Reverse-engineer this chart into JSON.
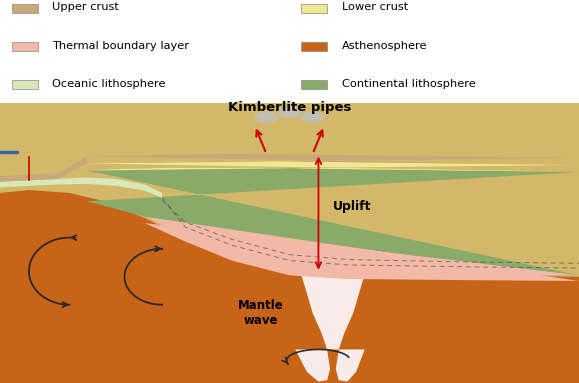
{
  "fig_width": 5.79,
  "fig_height": 3.83,
  "dpi": 100,
  "bg_color": "#ffffff",
  "legend": {
    "col1": [
      {
        "label": "Upper crust",
        "color": "#c8a97a"
      },
      {
        "label": "Thermal boundary layer",
        "color": "#f2b8a8"
      },
      {
        "label": "Oceanic lithosphere",
        "color": "#d8e8b8"
      }
    ],
    "col2": [
      {
        "label": "Lower crust",
        "color": "#f0e890"
      },
      {
        "label": "Asthenosphere",
        "color": "#c86418"
      },
      {
        "label": "Continental lithosphere",
        "color": "#8aaa6a"
      }
    ]
  },
  "colors": {
    "upper_crust": "#c8a97a",
    "lower_crust": "#f0e890",
    "thermal_boundary": "#f2b8a8",
    "asthenosphere": "#c86418",
    "oceanic_litho": "#d8e8b8",
    "continental_litho": "#8aaa6a",
    "mantle_bg": "#d4b86a",
    "red": "#cc0000",
    "dark": "#2a2a2a",
    "blue": "#3366aa",
    "smoke": "#c0c0c0",
    "white_drip": "#f8ece8"
  },
  "labels": {
    "kimberlite": "Kimberlite pipes",
    "uplift": "Uplift",
    "mantle_wave": "Mantle\nwave"
  }
}
